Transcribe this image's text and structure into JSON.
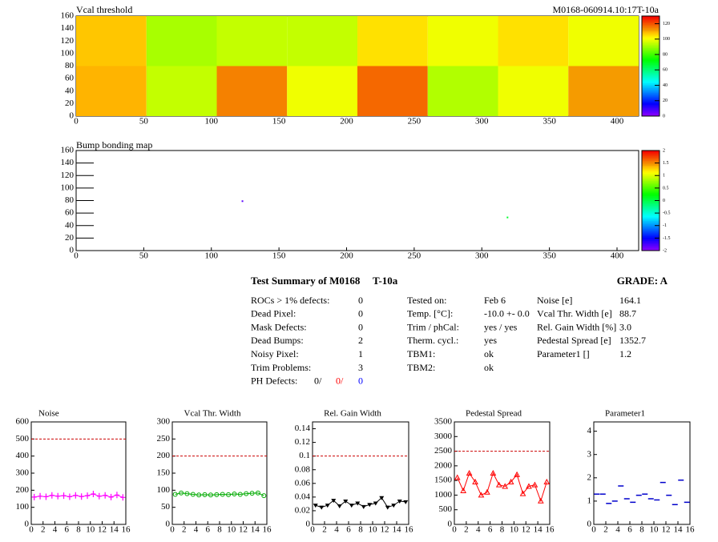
{
  "chart_data": [
    {
      "type": "heatmap",
      "title": "Vcal threshold",
      "subtitle": "M0168-060914.10:17T-10a",
      "xbins": [
        0,
        52,
        104,
        156,
        208,
        260,
        312,
        364,
        416
      ],
      "ybins": [
        0,
        80,
        160
      ],
      "values": [
        [
          110,
          95,
          115,
          100,
          118,
          93,
          100,
          112
        ],
        [
          108,
          92,
          95,
          95,
          105,
          100,
          105,
          100
        ]
      ],
      "xlim": [
        0,
        416
      ],
      "xticks": [
        0,
        50,
        100,
        150,
        200,
        250,
        300,
        350,
        400
      ],
      "ylim": [
        0,
        160
      ],
      "yticks": [
        0,
        20,
        40,
        60,
        80,
        100,
        120,
        140,
        160
      ],
      "zlim": [
        0,
        130
      ],
      "zticks": [
        0,
        20,
        40,
        60,
        80,
        100,
        120
      ]
    },
    {
      "type": "heatmap",
      "title": "Bump bonding map",
      "x": [
        123,
        319
      ],
      "y": [
        79,
        53
      ],
      "values": [
        -1.8,
        0.1
      ],
      "xlim": [
        0,
        416
      ],
      "xticks": [
        0,
        50,
        100,
        150,
        200,
        250,
        300,
        350,
        400
      ],
      "ylim": [
        0,
        160
      ],
      "yticks": [
        0,
        20,
        40,
        60,
        80,
        100,
        120,
        140,
        160
      ],
      "zlim": [
        -2,
        2
      ],
      "zticks": [
        -2,
        -1.5,
        -1,
        -0.5,
        0,
        0.5,
        1,
        1.5,
        2
      ]
    },
    {
      "type": "line",
      "title": "Noise",
      "color": "#ff00ff",
      "marker": "plus",
      "line": true,
      "x": [
        0.5,
        1.5,
        2.5,
        3.5,
        4.5,
        5.5,
        6.5,
        7.5,
        8.5,
        9.5,
        10.5,
        11.5,
        12.5,
        13.5,
        14.5,
        15.5
      ],
      "values": [
        160,
        165,
        162,
        170,
        165,
        168,
        162,
        170,
        163,
        168,
        178,
        165,
        170,
        160,
        172,
        158
      ],
      "reference_line": 500,
      "xlim": [
        0,
        16
      ],
      "xticks": [
        0,
        2,
        4,
        6,
        8,
        10,
        12,
        14,
        16
      ],
      "ylim": [
        0,
        600
      ],
      "yticks": [
        0,
        100,
        200,
        300,
        400,
        500,
        600
      ]
    },
    {
      "type": "line",
      "title": "Vcal Thr. Width",
      "color": "#00aa00",
      "marker": "circle",
      "line": true,
      "x": [
        0.5,
        1.5,
        2.5,
        3.5,
        4.5,
        5.5,
        6.5,
        7.5,
        8.5,
        9.5,
        10.5,
        11.5,
        12.5,
        13.5,
        14.5,
        15.5
      ],
      "values": [
        88,
        92,
        90,
        88,
        86,
        87,
        86,
        87,
        88,
        87,
        89,
        88,
        90,
        91,
        92,
        84
      ],
      "reference_line": 200,
      "xlim": [
        0,
        16
      ],
      "xticks": [
        0,
        2,
        4,
        6,
        8,
        10,
        12,
        14,
        16
      ],
      "ylim": [
        0,
        300
      ],
      "yticks": [
        0,
        50,
        100,
        150,
        200,
        250,
        300
      ]
    },
    {
      "type": "line",
      "title": "Rel. Gain Width",
      "color": "#000000",
      "marker": "triangle-down",
      "line": true,
      "x": [
        0.5,
        1.5,
        2.5,
        3.5,
        4.5,
        5.5,
        6.5,
        7.5,
        8.5,
        9.5,
        10.5,
        11.5,
        12.5,
        13.5,
        14.5,
        15.5
      ],
      "values": [
        0.028,
        0.025,
        0.028,
        0.035,
        0.027,
        0.034,
        0.028,
        0.031,
        0.026,
        0.029,
        0.031,
        0.039,
        0.025,
        0.028,
        0.034,
        0.033
      ],
      "reference_line": 0.1,
      "xlim": [
        0,
        16
      ],
      "xticks": [
        0,
        2,
        4,
        6,
        8,
        10,
        12,
        14,
        16
      ],
      "ylim": [
        0,
        0.15
      ],
      "yticks": [
        0,
        0.02,
        0.04,
        0.06,
        0.08,
        0.1,
        0.12,
        0.14
      ]
    },
    {
      "type": "line",
      "title": "Pedestal Spread",
      "color": "#ff0000",
      "marker": "triangle-up",
      "line": true,
      "x": [
        0.5,
        1.5,
        2.5,
        3.5,
        4.5,
        5.5,
        6.5,
        7.5,
        8.5,
        9.5,
        10.5,
        11.5,
        12.5,
        13.5,
        14.5,
        15.5
      ],
      "values": [
        1600,
        1150,
        1750,
        1450,
        1000,
        1100,
        1750,
        1350,
        1300,
        1450,
        1700,
        1050,
        1300,
        1350,
        800,
        1450
      ],
      "reference_line": 2500,
      "xlim": [
        0,
        16
      ],
      "xticks": [
        0,
        2,
        4,
        6,
        8,
        10,
        12,
        14,
        16
      ],
      "ylim": [
        0,
        3500
      ],
      "yticks": [
        0,
        500,
        1000,
        1500,
        2000,
        2500,
        3000,
        3500
      ]
    },
    {
      "type": "line",
      "title": "Parameter1",
      "color": "#0000cc",
      "marker": "dash",
      "line": false,
      "x": [
        0.5,
        1.5,
        2.5,
        3.5,
        4.5,
        5.5,
        6.5,
        7.5,
        8.5,
        9.5,
        10.5,
        11.5,
        12.5,
        13.5,
        14.5,
        15.5
      ],
      "values": [
        1.3,
        1.3,
        0.9,
        1.0,
        1.65,
        1.1,
        0.95,
        1.25,
        1.3,
        1.1,
        1.05,
        1.8,
        1.25,
        0.85,
        1.9,
        0.95
      ],
      "xlim": [
        0,
        16
      ],
      "xticks": [
        0,
        2,
        4,
        6,
        8,
        10,
        12,
        14,
        16
      ],
      "ylim": [
        0,
        4.4
      ],
      "yticks": [
        0,
        1,
        2,
        3,
        4
      ]
    }
  ],
  "summary": {
    "title": "Test Summary of M0168",
    "temperature": "T-10a",
    "grade": "GRADE:  A",
    "left": [
      [
        "ROCs > 1% defects:",
        "0"
      ],
      [
        "Dead Pixel:",
        "0"
      ],
      [
        "Mask Defects:",
        "0"
      ],
      [
        "Dead Bumps:",
        "2"
      ],
      [
        "Noisy Pixel:",
        "1"
      ],
      [
        "Trim Problems:",
        "3"
      ]
    ],
    "ph_defects": {
      "label": "PH Defects:",
      "values": [
        "0/",
        "0/",
        "0"
      ]
    },
    "middle": [
      [
        "Tested on:",
        "Feb 6"
      ],
      [
        "Temp. [°C]:",
        "-10.0 +- 0.0"
      ],
      [
        "Trim / phCal:",
        "yes / yes"
      ],
      [
        "Therm. cycl.:",
        "yes"
      ],
      [
        "TBM1:",
        "ok"
      ],
      [
        "TBM2:",
        "ok"
      ]
    ],
    "right": [
      [
        "Noise [e]",
        "164.1"
      ],
      [
        "Vcal Thr. Width [e]",
        "88.7"
      ],
      [
        "Rel. Gain Width [%]",
        "3.0"
      ],
      [
        "Pedestal Spread [e]",
        "1352.7"
      ],
      [
        "Parameter1 []",
        "1.2"
      ]
    ]
  }
}
